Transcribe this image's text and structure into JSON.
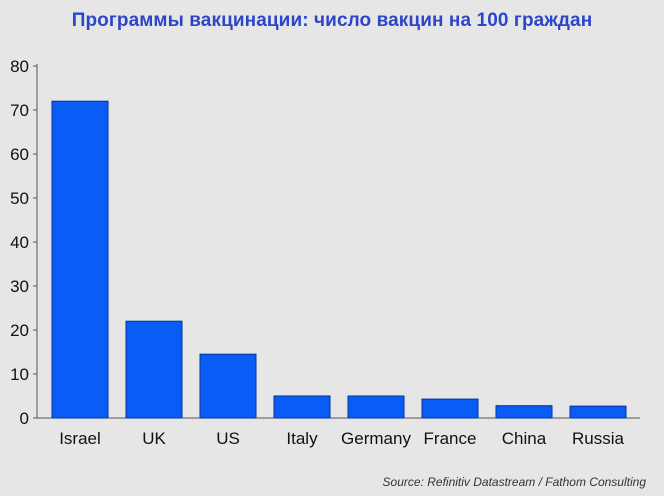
{
  "title": "Программы вакцинации: число вакцин на 100 граждан",
  "source": "Source: Refinitiv Datastream / Fathom Consulting",
  "colors": {
    "bar": "#0a5cf7",
    "bar_edge": "#003399",
    "background": "#e6e6e6",
    "title": "#2d45c8"
  },
  "chart_data": {
    "type": "bar",
    "title": "Программы вакцинации: число вакцин на 100 граждан",
    "xlabel": "",
    "ylabel": "",
    "categories": [
      "Israel",
      "UK",
      "US",
      "Italy",
      "Germany",
      "France",
      "China",
      "Russia"
    ],
    "values": [
      72,
      22,
      14.5,
      5,
      5,
      4.3,
      2.8,
      2.7
    ],
    "ylim": [
      0,
      80
    ],
    "yticks": [
      0,
      10,
      20,
      30,
      40,
      50,
      60,
      70,
      80
    ],
    "grid": false,
    "legend": "none"
  }
}
